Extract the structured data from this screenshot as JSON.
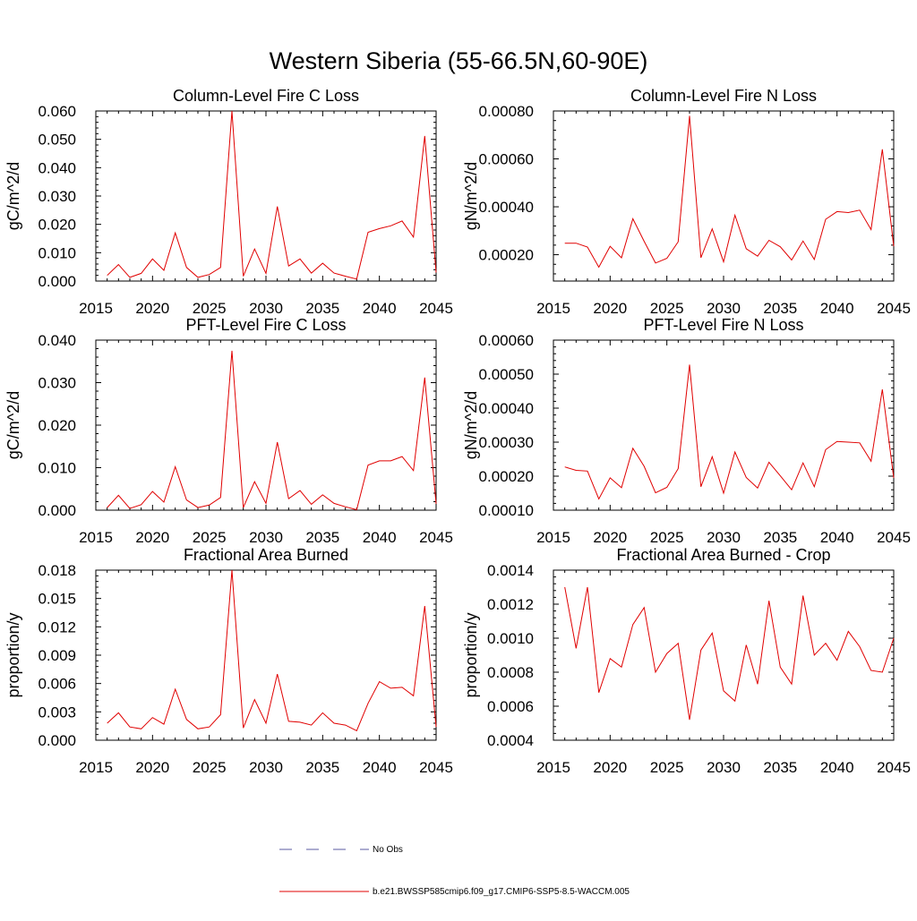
{
  "figure": {
    "title": "Western Siberia (55-66.5N,60-90E)",
    "line_color": "#e00000",
    "obs_color": "#5a5aa0"
  },
  "legend": {
    "obs_label": "No Obs",
    "model_label": "b.e21.BWSSP585cmip6.f09_g17.CMIP6-SSP5-8.5-WACCM.005"
  },
  "chart_data": [
    {
      "type": "line",
      "title": "Column-Level Fire C Loss",
      "ylabel": "gC/m^2/d",
      "xlim": [
        2015,
        2045
      ],
      "xticks": [
        2015,
        2020,
        2025,
        2030,
        2035,
        2040,
        2045
      ],
      "ylim": [
        0,
        0.06
      ],
      "yticks": [
        "0.000",
        "0.010",
        "0.020",
        "0.030",
        "0.040",
        "0.050",
        "0.060"
      ],
      "series": [
        {
          "name": "b.e21.BWSSP585cmip6.f09_g17.CMIP6-SSP5-8.5-WACCM.005",
          "x": [
            2016,
            2017,
            2018,
            2019,
            2020,
            2021,
            2022,
            2023,
            2024,
            2025,
            2026,
            2027,
            2028,
            2029,
            2030,
            2031,
            2032,
            2033,
            2034,
            2035,
            2036,
            2037,
            2038,
            2039,
            2040,
            2041,
            2042,
            2043,
            2044,
            2045
          ],
          "values": [
            0.002,
            0.0058,
            0.0013,
            0.0027,
            0.0078,
            0.0038,
            0.017,
            0.0048,
            0.0013,
            0.0023,
            0.0048,
            0.06,
            0.0017,
            0.0113,
            0.0027,
            0.0263,
            0.0053,
            0.0078,
            0.0028,
            0.0063,
            0.0028,
            0.0017,
            0.0007,
            0.0172,
            0.0185,
            0.0195,
            0.0212,
            0.0155,
            0.0512,
            0.003
          ]
        }
      ]
    },
    {
      "type": "line",
      "title": "Column-Level Fire N Loss",
      "ylabel": "gN/m^2/d",
      "xlim": [
        2015,
        2045
      ],
      "xticks": [
        2015,
        2020,
        2025,
        2030,
        2035,
        2040,
        2045
      ],
      "ylim": [
        9e-05,
        0.0008
      ],
      "yticks": [
        "0.00020",
        "0.00040",
        "0.00060",
        "0.00080"
      ],
      "series": [
        {
          "name": "b.e21.BWSSP585cmip6.f09_g17.CMIP6-SSP5-8.5-WACCM.005",
          "x": [
            2016,
            2017,
            2018,
            2019,
            2020,
            2021,
            2022,
            2023,
            2024,
            2025,
            2026,
            2027,
            2028,
            2029,
            2030,
            2031,
            2032,
            2033,
            2034,
            2035,
            2036,
            2037,
            2038,
            2039,
            2040,
            2041,
            2042,
            2043,
            2044,
            2045
          ],
          "values": [
            0.000248,
            0.000248,
            0.000232,
            0.000148,
            0.000235,
            0.000187,
            0.00035,
            0.000256,
            0.000165,
            0.000185,
            0.000254,
            0.00078,
            0.000187,
            0.000308,
            0.00017,
            0.000365,
            0.000225,
            0.000194,
            0.00026,
            0.000233,
            0.000178,
            0.000257,
            0.00018,
            0.000348,
            0.00038,
            0.000376,
            0.000386,
            0.000305,
            0.00064,
            0.000235
          ]
        }
      ]
    },
    {
      "type": "line",
      "title": "PFT-Level Fire C Loss",
      "ylabel": "gC/m^2/d",
      "xlim": [
        2015,
        2045
      ],
      "xticks": [
        2015,
        2020,
        2025,
        2030,
        2035,
        2040,
        2045
      ],
      "ylim": [
        0,
        0.04
      ],
      "yticks": [
        "0.000",
        "0.010",
        "0.020",
        "0.030",
        "0.040"
      ],
      "series": [
        {
          "name": "b.e21.BWSSP585cmip6.f09_g17.CMIP6-SSP5-8.5-WACCM.005",
          "x": [
            2016,
            2017,
            2018,
            2019,
            2020,
            2021,
            2022,
            2023,
            2024,
            2025,
            2026,
            2027,
            2028,
            2029,
            2030,
            2031,
            2032,
            2033,
            2034,
            2035,
            2036,
            2037,
            2038,
            2039,
            2040,
            2041,
            2042,
            2043,
            2044,
            2045
          ],
          "values": [
            0.0006,
            0.0035,
            0.0004,
            0.0013,
            0.0044,
            0.0019,
            0.0102,
            0.0024,
            0.0006,
            0.0012,
            0.003,
            0.0375,
            0.0006,
            0.0067,
            0.0016,
            0.016,
            0.0027,
            0.0046,
            0.0014,
            0.0036,
            0.0016,
            0.0008,
            0.0001,
            0.0106,
            0.0116,
            0.0116,
            0.0126,
            0.0093,
            0.0312,
            0.0015
          ]
        }
      ]
    },
    {
      "type": "line",
      "title": "PFT-Level Fire N Loss",
      "ylabel": "gN/m^2/d",
      "xlim": [
        2015,
        2045
      ],
      "xticks": [
        2015,
        2020,
        2025,
        2030,
        2035,
        2040,
        2045
      ],
      "ylim": [
        0.0001,
        0.0006
      ],
      "yticks": [
        "0.00010",
        "0.00020",
        "0.00030",
        "0.00040",
        "0.00050",
        "0.00060"
      ],
      "series": [
        {
          "name": "b.e21.BWSSP585cmip6.f09_g17.CMIP6-SSP5-8.5-WACCM.005",
          "x": [
            2016,
            2017,
            2018,
            2019,
            2020,
            2021,
            2022,
            2023,
            2024,
            2025,
            2026,
            2027,
            2028,
            2029,
            2030,
            2031,
            2032,
            2033,
            2034,
            2035,
            2036,
            2037,
            2038,
            2039,
            2040,
            2041,
            2042,
            2043,
            2044,
            2045
          ],
          "values": [
            0.000227,
            0.000217,
            0.000215,
            0.000133,
            0.000195,
            0.000166,
            0.000282,
            0.000229,
            0.000151,
            0.000167,
            0.000222,
            0.000528,
            0.000169,
            0.000257,
            0.00015,
            0.000271,
            0.000196,
            0.000165,
            0.000241,
            0.000201,
            0.00016,
            0.000239,
            0.000169,
            0.000278,
            0.000302,
            0.0003,
            0.000298,
            0.000244,
            0.000455,
            0.000195
          ]
        }
      ]
    },
    {
      "type": "line",
      "title": "Fractional Area Burned",
      "ylabel": "proportion/y",
      "xlim": [
        2015,
        2045
      ],
      "xticks": [
        2015,
        2020,
        2025,
        2030,
        2035,
        2040,
        2045
      ],
      "ylim": [
        0,
        0.018
      ],
      "yticks": [
        "0.000",
        "0.003",
        "0.006",
        "0.009",
        "0.012",
        "0.015",
        "0.018"
      ],
      "series": [
        {
          "name": "b.e21.BWSSP585cmip6.f09_g17.CMIP6-SSP5-8.5-WACCM.005",
          "x": [
            2016,
            2017,
            2018,
            2019,
            2020,
            2021,
            2022,
            2023,
            2024,
            2025,
            2026,
            2027,
            2028,
            2029,
            2030,
            2031,
            2032,
            2033,
            2034,
            2035,
            2036,
            2037,
            2038,
            2039,
            2040,
            2041,
            2042,
            2043,
            2044,
            2045
          ],
          "values": [
            0.0018,
            0.0029,
            0.0014,
            0.0012,
            0.0024,
            0.0017,
            0.0054,
            0.0022,
            0.0012,
            0.0014,
            0.0027,
            0.018,
            0.0013,
            0.0043,
            0.0018,
            0.007,
            0.002,
            0.0019,
            0.0016,
            0.0029,
            0.0018,
            0.0016,
            0.001,
            0.0039,
            0.0062,
            0.0055,
            0.0056,
            0.0047,
            0.0142,
            0.0014
          ]
        }
      ]
    },
    {
      "type": "line",
      "title": "Fractional Area Burned - Crop",
      "ylabel": "proportion/y",
      "xlim": [
        2015,
        2045
      ],
      "xticks": [
        2015,
        2020,
        2025,
        2030,
        2035,
        2040,
        2045
      ],
      "ylim": [
        0.0004,
        0.0014
      ],
      "yticks": [
        "0.0004",
        "0.0006",
        "0.0008",
        "0.0010",
        "0.0012",
        "0.0014"
      ],
      "series": [
        {
          "name": "b.e21.BWSSP585cmip6.f09_g17.CMIP6-SSP5-8.5-WACCM.005",
          "x": [
            2016,
            2017,
            2018,
            2019,
            2020,
            2021,
            2022,
            2023,
            2024,
            2025,
            2026,
            2027,
            2028,
            2029,
            2030,
            2031,
            2032,
            2033,
            2034,
            2035,
            2036,
            2037,
            2038,
            2039,
            2040,
            2041,
            2042,
            2043,
            2044,
            2045
          ],
          "values": [
            0.0013,
            0.00094,
            0.0013,
            0.00068,
            0.00088,
            0.00083,
            0.00108,
            0.00118,
            0.0008,
            0.00091,
            0.00097,
            0.00052,
            0.00093,
            0.00103,
            0.00069,
            0.00063,
            0.00096,
            0.00073,
            0.00122,
            0.00083,
            0.00073,
            0.00125,
            0.0009,
            0.00097,
            0.00087,
            0.00104,
            0.00095,
            0.00081,
            0.0008,
            0.001
          ]
        }
      ]
    }
  ]
}
